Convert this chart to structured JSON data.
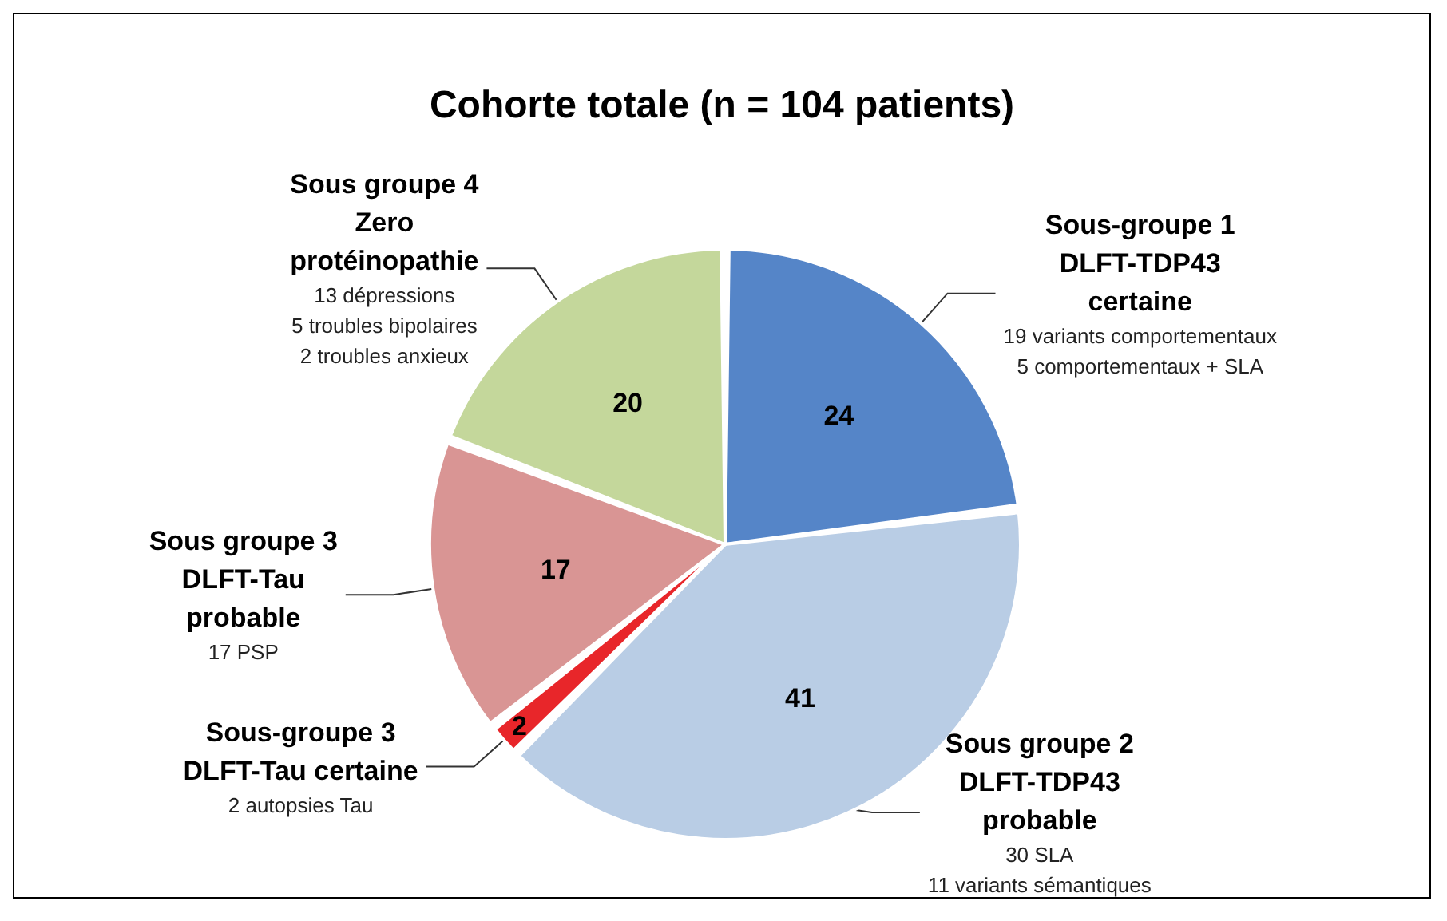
{
  "chart_data": {
    "type": "pie",
    "title": "Cohorte totale (n = 104 patients)",
    "categories": [
      "Sous-groupe 1\nDLFT-TDP43\ncertaine",
      "Sous groupe 2\nDLFT-TDP43\nprobable",
      "Sous-groupe 3\nDLFT-Tau certaine",
      "Sous groupe 3\nDLFT-Tau\nprobable",
      "Sous groupe 4\nZero\nprotéinopathie"
    ],
    "values": [
      24,
      41,
      2,
      17,
      20
    ],
    "colors": [
      "#5585c8",
      "#b9cde5",
      "#e8262a",
      "#d99594",
      "#c4d79b"
    ],
    "annotations": [
      "19 variants comportementaux\n5 comportementaux + SLA",
      "30 SLA\n11 variants sémantiques",
      "2 autopsies Tau",
      "17 PSP",
      "13 dépressions\n5 troubles bipolaires\n2 troubles anxieux"
    ],
    "data_labels": true,
    "legend": false
  }
}
